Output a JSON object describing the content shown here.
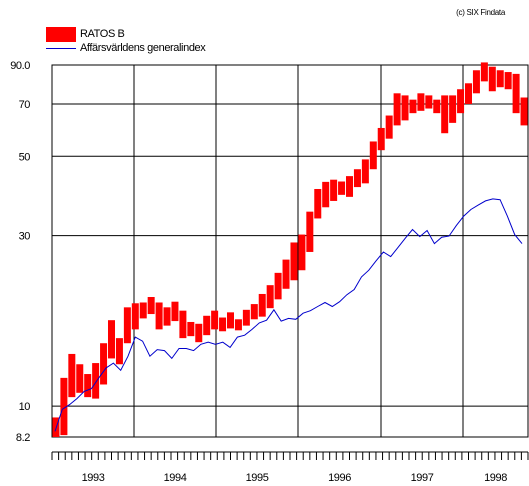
{
  "copyright": "(c) SIX Findata",
  "chart_data": {
    "type": "bar",
    "legend_position": "top-left",
    "grid": true,
    "y_scale": "log",
    "ylim": [
      8.2,
      90.0
    ],
    "yticks": [
      {
        "value": 90.0,
        "label": "90.0"
      },
      {
        "value": 70,
        "label": "70"
      },
      {
        "value": 50,
        "label": "50"
      },
      {
        "value": 30,
        "label": "30"
      },
      {
        "value": 10,
        "label": "10"
      },
      {
        "value": 8.2,
        "label": "8.2"
      }
    ],
    "year_labels": [
      "1993",
      "1994",
      "1995",
      "1996",
      "1997",
      "1998"
    ],
    "colors": {
      "bars": "#ff0000",
      "index": "#0000cc",
      "grid": "#000000"
    },
    "series": [
      {
        "name": "RATOS B",
        "style": "range-bars",
        "ranges": [
          [
            8.2,
            9.3
          ],
          [
            8.3,
            12.0
          ],
          [
            10.6,
            14.0
          ],
          [
            10.9,
            13.1
          ],
          [
            10.6,
            12.3
          ],
          [
            10.5,
            13.2
          ],
          [
            11.5,
            15.0
          ],
          [
            13.6,
            17.4
          ],
          [
            13.1,
            15.5
          ],
          [
            15.0,
            18.9
          ],
          [
            16.4,
            19.4
          ],
          [
            17.6,
            19.5
          ],
          [
            18.1,
            20.2
          ],
          [
            16.4,
            19.5
          ],
          [
            16.8,
            18.9
          ],
          [
            17.3,
            19.6
          ],
          [
            15.5,
            18.5
          ],
          [
            15.7,
            17.2
          ],
          [
            15.1,
            17.0
          ],
          [
            15.8,
            17.9
          ],
          [
            16.4,
            18.5
          ],
          [
            16.2,
            17.7
          ],
          [
            16.5,
            18.3
          ],
          [
            16.3,
            17.5
          ],
          [
            16.8,
            18.6
          ],
          [
            17.5,
            19.3
          ],
          [
            17.8,
            20.6
          ],
          [
            18.8,
            21.8
          ],
          [
            19.9,
            23.6
          ],
          [
            21.3,
            25.7
          ],
          [
            22.5,
            28.7
          ],
          [
            24.0,
            30.2
          ],
          [
            27.0,
            35.0
          ],
          [
            33.5,
            40.5
          ],
          [
            36.0,
            42.4
          ],
          [
            37.5,
            43.0
          ],
          [
            39.0,
            42.5
          ],
          [
            38.5,
            44.0
          ],
          [
            41.0,
            46.0
          ],
          [
            42.0,
            49.0
          ],
          [
            46.0,
            55.0
          ],
          [
            52.0,
            60.0
          ],
          [
            56.0,
            65.0
          ],
          [
            61.0,
            75.0
          ],
          [
            63.0,
            74.0
          ],
          [
            66.0,
            72.0
          ],
          [
            67.0,
            75.0
          ],
          [
            68.0,
            74.0
          ],
          [
            66.0,
            72.0
          ],
          [
            58.0,
            74.0
          ],
          [
            62.0,
            74.0
          ],
          [
            66.0,
            77.0
          ],
          [
            70.0,
            80.0
          ],
          [
            75.0,
            87.0
          ],
          [
            81.0,
            91.5
          ],
          [
            76.0,
            89.0
          ],
          [
            78.0,
            87.0
          ],
          [
            77.0,
            86.0
          ],
          [
            66.0,
            85.0
          ],
          [
            61.0,
            73.0
          ]
        ]
      },
      {
        "name": "Affärsvärldens generalindex",
        "style": "line",
        "values": [
          8.5,
          9.8,
          10.1,
          10.5,
          11.0,
          11.2,
          12.0,
          12.8,
          13.2,
          12.6,
          13.8,
          15.6,
          15.2,
          13.8,
          14.4,
          14.3,
          13.6,
          14.5,
          14.5,
          14.3,
          14.9,
          15.1,
          14.9,
          15.1,
          14.6,
          15.6,
          15.8,
          16.4,
          17.1,
          17.4,
          18.6,
          17.3,
          17.6,
          17.5,
          18.2,
          18.5,
          19.0,
          19.5,
          19.0,
          19.6,
          20.5,
          21.2,
          23.0,
          24.0,
          25.5,
          27.0,
          26.2,
          27.8,
          29.5,
          31.2,
          29.8,
          31.0,
          28.5,
          29.7,
          29.9,
          32.0,
          34.0,
          35.5,
          36.5,
          37.5,
          38.0,
          37.8,
          34.0,
          30.2,
          28.5
        ]
      }
    ]
  }
}
